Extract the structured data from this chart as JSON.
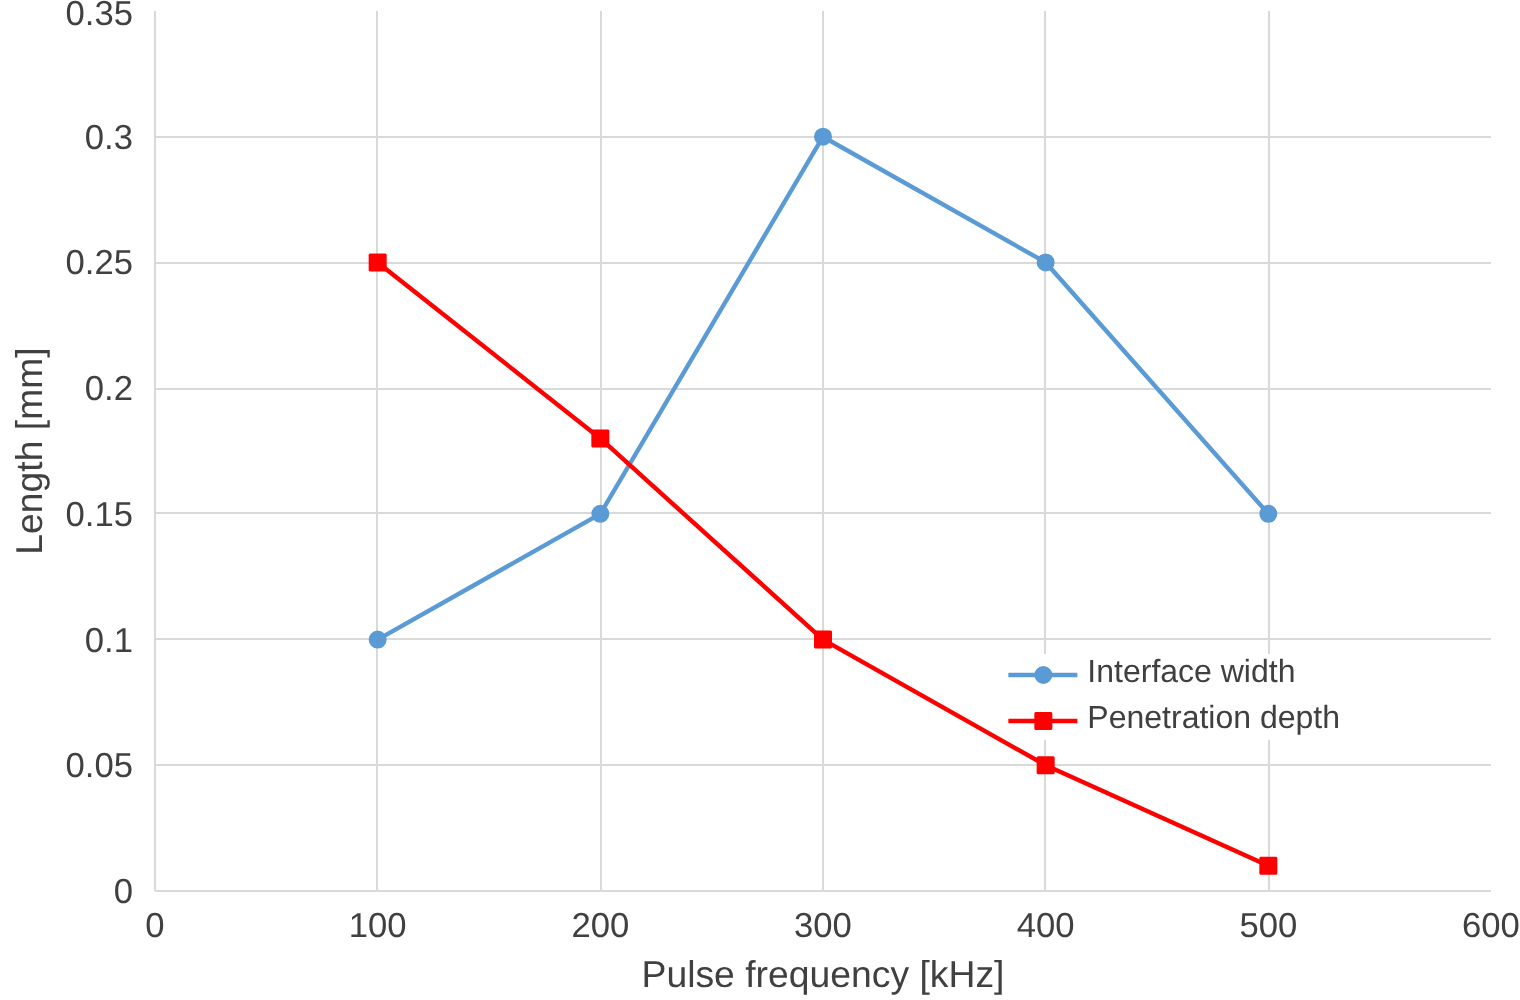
{
  "chart_data": {
    "type": "line",
    "xlabel": "Pulse frequency [kHz]",
    "ylabel": "Length [mm]",
    "x": [
      100,
      200,
      300,
      400,
      500
    ],
    "series": [
      {
        "name": "Interface width",
        "color": "#5b9bd5",
        "marker": "circle",
        "values": [
          0.1,
          0.15,
          0.3,
          0.25,
          0.15
        ]
      },
      {
        "name": "Penetration depth",
        "color": "#ff0000",
        "marker": "square",
        "values": [
          0.25,
          0.18,
          0.1,
          0.05,
          0.01
        ]
      }
    ],
    "xlim": [
      0,
      600
    ],
    "xticks": [
      0,
      100,
      200,
      300,
      400,
      500,
      600
    ],
    "ylim": [
      0,
      0.35
    ],
    "yticks": [
      0,
      0.05,
      0.1,
      0.15,
      0.2,
      0.25,
      0.3,
      0.35
    ],
    "grid": true,
    "legend": "bottom right",
    "line_style": "solid"
  }
}
